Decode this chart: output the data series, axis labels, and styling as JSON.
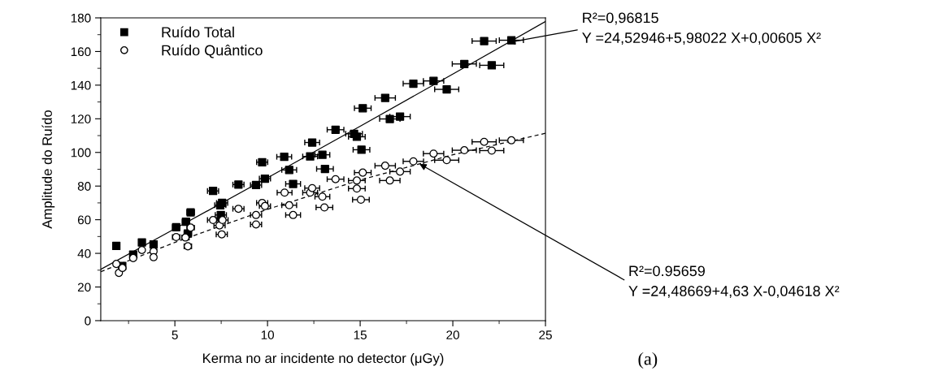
{
  "chart_data": {
    "type": "scatter",
    "xlabel": "Kerma no ar incidente no detector (μGy)",
    "ylabel": "Amplitude do Ruído",
    "xlim": [
      1,
      25
    ],
    "xticks": [
      5,
      10,
      15,
      20,
      25
    ],
    "ylim": [
      0,
      180
    ],
    "yticks": [
      0,
      20,
      40,
      60,
      80,
      100,
      120,
      140,
      160,
      180
    ],
    "grid": false,
    "legend": "top left",
    "series": [
      {
        "name": "Ruído Total",
        "color": "#000000",
        "marker": "square",
        "x": [
          1.84,
          2.16,
          2.75,
          3.22,
          3.85,
          5.07,
          5.6,
          5.7,
          5.85,
          7.06,
          7.45,
          7.48,
          7.55,
          8.43,
          9.38,
          9.71,
          9.86,
          10.9,
          11.17,
          11.38,
          12.3,
          12.41,
          12.96,
          13.1,
          13.67,
          14.67,
          14.82,
          15.07,
          15.14,
          16.35,
          16.6,
          17.15,
          17.87,
          18.96,
          19.67,
          20.62,
          21.69,
          22.1,
          23.16
        ],
        "values": [
          44.4,
          32.5,
          39.3,
          46.5,
          45.3,
          55.6,
          58.8,
          51.8,
          64.4,
          77.1,
          68.6,
          62.8,
          70.0,
          80.9,
          80.6,
          94.2,
          84.4,
          97.4,
          89.6,
          81.3,
          97.6,
          105.9,
          98.6,
          90.2,
          113.5,
          111.1,
          109.3,
          101.6,
          126.3,
          132.4,
          119.9,
          121.3,
          140.9,
          142.5,
          137.5,
          152.6,
          166.2,
          151.8,
          166.7
        ],
        "xerrors": [
          0.1,
          0.1,
          0.1,
          0.1,
          0.1,
          0.2,
          0.2,
          0.2,
          0.2,
          0.3,
          0.3,
          0.3,
          0.3,
          0.3,
          0.3,
          0.3,
          0.3,
          0.4,
          0.4,
          0.4,
          0.4,
          0.4,
          0.4,
          0.45,
          0.45,
          0.45,
          0.45,
          0.45,
          0.45,
          0.55,
          0.55,
          0.55,
          0.55,
          0.55,
          0.65,
          0.65,
          0.65,
          0.65,
          0.65
        ]
      },
      {
        "name": "Ruído Quântico",
        "color": "#000000",
        "marker": "circle",
        "x": [
          1.84,
          1.98,
          2.17,
          2.75,
          3.22,
          3.85,
          3.85,
          5.07,
          5.57,
          5.7,
          5.85,
          7.06,
          7.41,
          7.53,
          7.57,
          8.43,
          9.38,
          9.38,
          9.71,
          9.86,
          10.92,
          11.17,
          11.38,
          12.3,
          12.41,
          12.96,
          13.07,
          13.67,
          14.82,
          14.82,
          15.04,
          15.14,
          16.35,
          16.6,
          17.15,
          17.87,
          18.96,
          19.67,
          20.62,
          21.69,
          22.1,
          23.16
        ],
        "values": [
          33.7,
          28.4,
          31.3,
          37.2,
          42.0,
          41.2,
          37.7,
          49.7,
          49.4,
          44.2,
          55.3,
          59.8,
          56.6,
          51.3,
          59.8,
          66.5,
          62.8,
          57.2,
          70.0,
          68.1,
          76.1,
          68.6,
          62.8,
          76.1,
          78.8,
          73.7,
          67.3,
          84.1,
          83.3,
          78.5,
          71.9,
          88.0,
          92.1,
          83.3,
          88.6,
          94.7,
          99.3,
          95.4,
          101.3,
          106.3,
          101.1,
          107.2
        ],
        "xerrors": [
          0.1,
          0.1,
          0.1,
          0.1,
          0.1,
          0.1,
          0.1,
          0.2,
          0.2,
          0.2,
          0.2,
          0.3,
          0.3,
          0.3,
          0.3,
          0.3,
          0.3,
          0.3,
          0.3,
          0.3,
          0.4,
          0.4,
          0.4,
          0.4,
          0.4,
          0.4,
          0.45,
          0.45,
          0.45,
          0.45,
          0.45,
          0.45,
          0.55,
          0.55,
          0.55,
          0.55,
          0.55,
          0.65,
          0.65,
          0.65,
          0.65,
          0.65
        ]
      },
      {
        "type": "line",
        "color": "#000000",
        "line_style": "solid",
        "x": [
          1,
          5,
          10,
          15,
          20,
          25
        ],
        "values": [
          30.5,
          54.6,
          84.9,
          115.6,
          146.6,
          177.8
        ]
      },
      {
        "type": "line",
        "color": "#000000",
        "line_style": "dashed",
        "x": [
          1,
          5,
          10,
          15,
          20,
          25
        ],
        "values": [
          29.1,
          46.5,
          66.2,
          83.6,
          98.6,
          111.4
        ]
      }
    ],
    "annotations": [
      {
        "text": "R²=0,96815\nY =24,52946+5,98022 X+0,00605 X²",
        "x": 23.0,
        "y": 165.3
      },
      {
        "text": "R²=0.95659\nY =24,48669+4,63 X-0,04618 X²",
        "x": 18.2,
        "y": 93.2
      },
      "(a)"
    ]
  }
}
